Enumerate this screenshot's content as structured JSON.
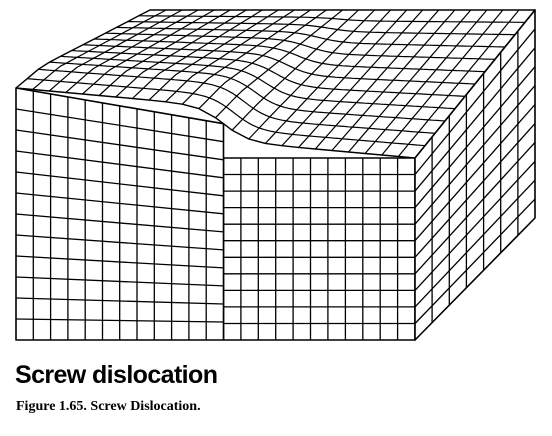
{
  "diagram": {
    "title": "Screw dislocation",
    "caption": "Figure 1.65. Screw Dislocation.",
    "line_color": "#000000",
    "background_color": "#ffffff"
  }
}
